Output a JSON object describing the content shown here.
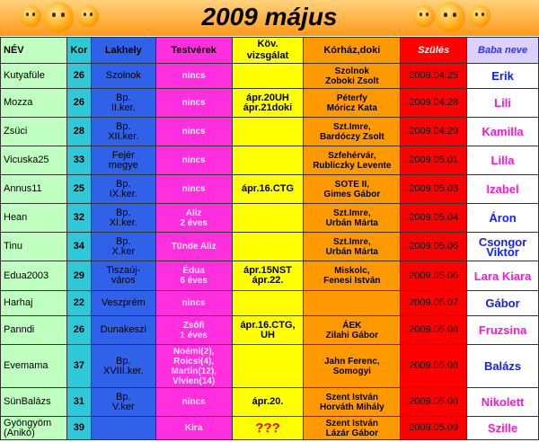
{
  "title": "2009 május",
  "headers": [
    "NÉV",
    "Kor",
    "Lakhely",
    "Testvérek",
    "Köv.\nvizsgálat",
    "Kórház,doki",
    "Szülés",
    "Baba neve"
  ],
  "rows": [
    {
      "name": "Kutyafüle",
      "age": "26",
      "city": "Szolnok",
      "siblings": "nincs",
      "exam": "",
      "hospital": "Szolnok\nZoboki Zsolt",
      "birth": "2009.04.25",
      "baby": "Erik",
      "color": "blue"
    },
    {
      "name": "Mozza",
      "age": "26",
      "city": "Bp.\nII.ker.",
      "siblings": "nincs",
      "exam": "ápr.20UH\nápr.21doki",
      "hospital": "Péterfy\nMóricz Kata",
      "birth": "2009.04.28",
      "baby": "Lili",
      "color": "pink"
    },
    {
      "name": "Zsüci",
      "age": "28",
      "city": "Bp.\nXII.ker.",
      "siblings": "nincs",
      "exam": "",
      "hospital": "Szt.Imre,\nBardóczy Zsolt",
      "birth": "2009.04.29",
      "baby": "Kamilla",
      "color": "pink"
    },
    {
      "name": "Vicuska25",
      "age": "33",
      "city": "Fejér\nmegye",
      "siblings": "nincs",
      "exam": "",
      "hospital": "Szfehérvár,\nRubliczky Levente",
      "birth": "2009.05.01",
      "baby": "Lilla",
      "color": "pink"
    },
    {
      "name": "Annus11",
      "age": "25",
      "city": "Bp.\nIX.ker.",
      "siblings": "nincs",
      "exam": "ápr.16.CTG",
      "hospital": "SOTE II,\nGimes Gábor",
      "birth": "2009.05.03",
      "baby": "Izabel",
      "color": "pink"
    },
    {
      "name": "Hean",
      "age": "32",
      "city": "Bp.\nXI.ker.",
      "siblings": "Aliz\n2 éves",
      "exam": "",
      "hospital": "Szt.Imre,\nUrbán Márta",
      "birth": "2009.05.04",
      "baby": "Áron",
      "color": "blue"
    },
    {
      "name": "Tinu",
      "age": "34",
      "city": "Bp.\nX.ker",
      "siblings": "Tünde Aliz",
      "exam": "",
      "hospital": "Szt.Imre,\nUrbán Márta",
      "birth": "2009.05.06",
      "baby": "Csongor\nViktor",
      "color": "blue"
    },
    {
      "name": "Edua2003",
      "age": "29",
      "city": "Tiszaúj-\nváros",
      "siblings": "Édua\n6 éves",
      "exam": "ápr.15NST\nápr.22.",
      "hospital": "Miskolc,\nFenesi István",
      "birth": "2009.05.06",
      "baby": "Lara Kiara",
      "color": "pink"
    },
    {
      "name": "Harhaj",
      "age": "22",
      "city": "Veszprém",
      "siblings": "nincs",
      "exam": "",
      "hospital": "",
      "birth": "2009.05.07",
      "baby": "Gábor",
      "color": "blue"
    },
    {
      "name": "Panndi",
      "age": "26",
      "city": "Dunakeszi",
      "siblings": "Zsófi\n1 éves",
      "exam": "ápr.16.CTG,\nUH",
      "hospital": "ÁEK\nZilahi Gábor",
      "birth": "2009.05.08",
      "baby": "Fruzsina",
      "color": "pink"
    },
    {
      "name": "Evemama",
      "age": "37",
      "city": "Bp.\nXVIII.ker.",
      "siblings": "Noémi(2),\nRoicsi(4),\nMartin(12),\nVivien(14)",
      "exam": "",
      "hospital": "Jahn Ferenc,\nSomogyi",
      "birth": "2009.05.08",
      "baby": "Balázs",
      "color": "blue"
    },
    {
      "name": "SünBalázs",
      "age": "31",
      "city": "Bp.\nV.ker",
      "siblings": "nincs",
      "exam": "ápr.20.",
      "hospital": "Szent István\nHorváth Mihály",
      "birth": "2009.05.08",
      "baby": "Nikolett",
      "color": "pink"
    },
    {
      "name": "Gyöngyöm\n(Anikó)",
      "age": "39",
      "city": "",
      "siblings": "Kira",
      "exam": "???",
      "hospital": "Szent István\nLázár Gábor",
      "birth": "2009.05.09",
      "baby": "Szille",
      "color": "pink"
    }
  ]
}
